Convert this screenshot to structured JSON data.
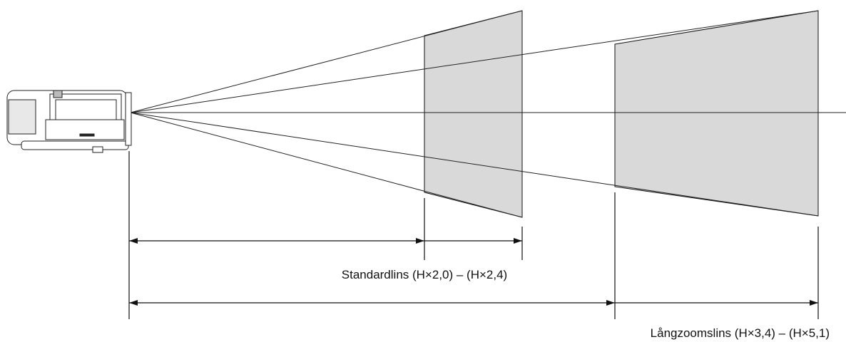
{
  "labels": {
    "standard_lens": "Standardlins (H×2,0) – (H×2,4)",
    "long_zoom_lens": "Långzoomslins (H×3,4) – (H×5,1)"
  }
}
